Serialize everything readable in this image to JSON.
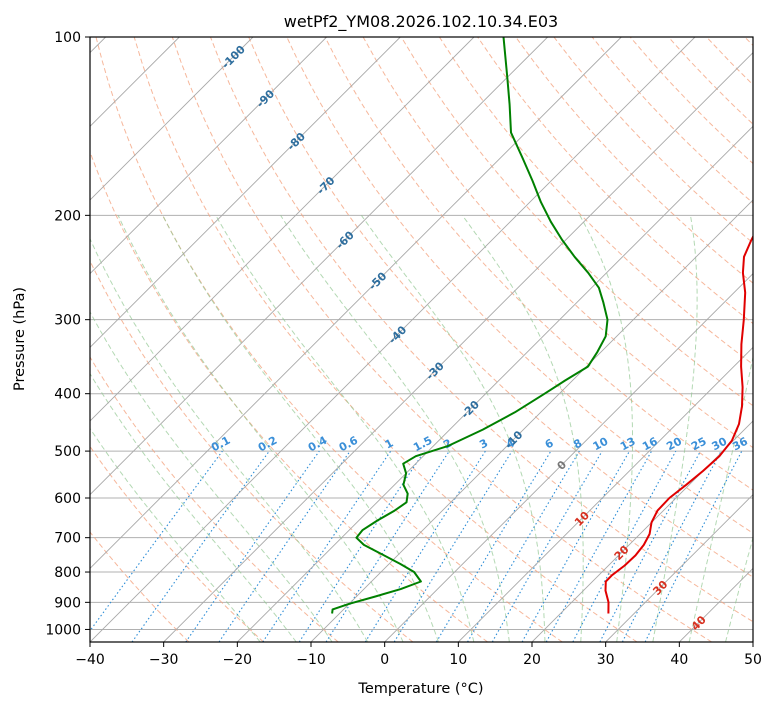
{
  "chart_data": {
    "type": "line",
    "subtype": "skew-T log-P diagram",
    "title": "wetPf2_YM08.2026.102.10.34.E03",
    "xlabel": "Temperature (°C)",
    "ylabel": "Pressure (hPa)",
    "xlim": [
      -40,
      50
    ],
    "ylim": [
      1050,
      100
    ],
    "y_scale": "log",
    "x_ticks": [
      "−40",
      "−30",
      "−20",
      "−10",
      "0",
      "10",
      "20",
      "30",
      "40",
      "50"
    ],
    "x_tick_values": [
      -40,
      -30,
      -20,
      -10,
      0,
      10,
      20,
      30,
      40,
      50
    ],
    "y_ticks": [
      "100",
      "200",
      "300",
      "400",
      "500",
      "600",
      "700",
      "800",
      "900",
      "1000"
    ],
    "y_tick_values": [
      100,
      200,
      300,
      400,
      500,
      600,
      700,
      800,
      900,
      1000
    ],
    "grid": true,
    "colors": {
      "temperature": "#e00000",
      "dewpoint": "#008000",
      "isotherm": "#a8a8a8",
      "dry_adiabat": "#f4a582",
      "moist_adiabat": "#93c793",
      "mixing_ratio": "#2b8cd6"
    },
    "series": [
      {
        "points": [
          [
            940,
            26.5
          ],
          [
            900,
            25.0
          ],
          [
            860,
            23.0
          ],
          [
            830,
            21.8
          ],
          [
            810,
            21.8
          ],
          [
            780,
            22.2
          ],
          [
            750,
            22.3
          ],
          [
            720,
            22.0
          ],
          [
            690,
            21.3
          ],
          [
            660,
            20.0
          ],
          [
            630,
            19.2
          ],
          [
            600,
            19.1
          ],
          [
            570,
            19.6
          ],
          [
            540,
            20.0
          ],
          [
            510,
            20.2
          ],
          [
            480,
            19.8
          ],
          [
            450,
            18.5
          ],
          [
            420,
            16.5
          ],
          [
            390,
            14.0
          ],
          [
            360,
            11.0
          ],
          [
            330,
            8.0
          ],
          [
            300,
            5.0
          ],
          [
            270,
            1.5
          ],
          [
            250,
            -1.5
          ],
          [
            235,
            -3.5
          ],
          [
            220,
            -4.8
          ],
          [
            205,
            -6.0
          ],
          [
            190,
            -7.0
          ],
          [
            175,
            -8.5
          ],
          [
            160,
            -10.5
          ],
          [
            150,
            -12.5
          ],
          [
            140,
            -15.2
          ],
          [
            130,
            -17.5
          ],
          [
            120,
            -21.0
          ],
          [
            113,
            -24.5
          ],
          [
            107,
            -28.0
          ],
          [
            100,
            -31.5
          ]
        ]
      },
      {
        "points": [
          [
            940,
            -11.0
          ],
          [
            925,
            -11.5
          ],
          [
            905,
            -10.0
          ],
          [
            880,
            -7.5
          ],
          [
            855,
            -5.0
          ],
          [
            830,
            -3.3
          ],
          [
            800,
            -5.5
          ],
          [
            775,
            -8.5
          ],
          [
            745,
            -12.5
          ],
          [
            720,
            -16.0
          ],
          [
            700,
            -18.0
          ],
          [
            680,
            -18.2
          ],
          [
            655,
            -17.5
          ],
          [
            630,
            -16.5
          ],
          [
            610,
            -16.0
          ],
          [
            590,
            -17.0
          ],
          [
            570,
            -18.8
          ],
          [
            545,
            -20.0
          ],
          [
            525,
            -21.7
          ],
          [
            510,
            -21.0
          ],
          [
            490,
            -18.0
          ],
          [
            460,
            -15.5
          ],
          [
            430,
            -13.5
          ],
          [
            400,
            -12.0
          ],
          [
            380,
            -11.0
          ],
          [
            360,
            -9.8
          ],
          [
            340,
            -10.5
          ],
          [
            320,
            -11.5
          ],
          [
            300,
            -13.5
          ],
          [
            280,
            -16.5
          ],
          [
            265,
            -19.0
          ],
          [
            250,
            -22.5
          ],
          [
            235,
            -26.5
          ],
          [
            220,
            -30.5
          ],
          [
            205,
            -34.5
          ],
          [
            190,
            -38.5
          ],
          [
            175,
            -42.5
          ],
          [
            160,
            -47.0
          ],
          [
            145,
            -52.0
          ],
          [
            130,
            -56.0
          ],
          [
            117,
            -60.0
          ],
          [
            100,
            -66.0
          ]
        ]
      }
    ],
    "isotherm_labels": [
      "-100",
      "-90",
      "-80",
      "-70",
      "-60",
      "-50",
      "-40",
      "-30",
      "-20",
      "-10",
      "0",
      "10",
      "20",
      "30",
      "40"
    ],
    "mixing_ratio_labels": [
      "0.1",
      "0.2",
      "0.4",
      "0.6",
      "1",
      "1.5",
      "2",
      "3",
      "4",
      "6",
      "8",
      "10",
      "13",
      "16",
      "20",
      "25",
      "30",
      "36"
    ]
  }
}
